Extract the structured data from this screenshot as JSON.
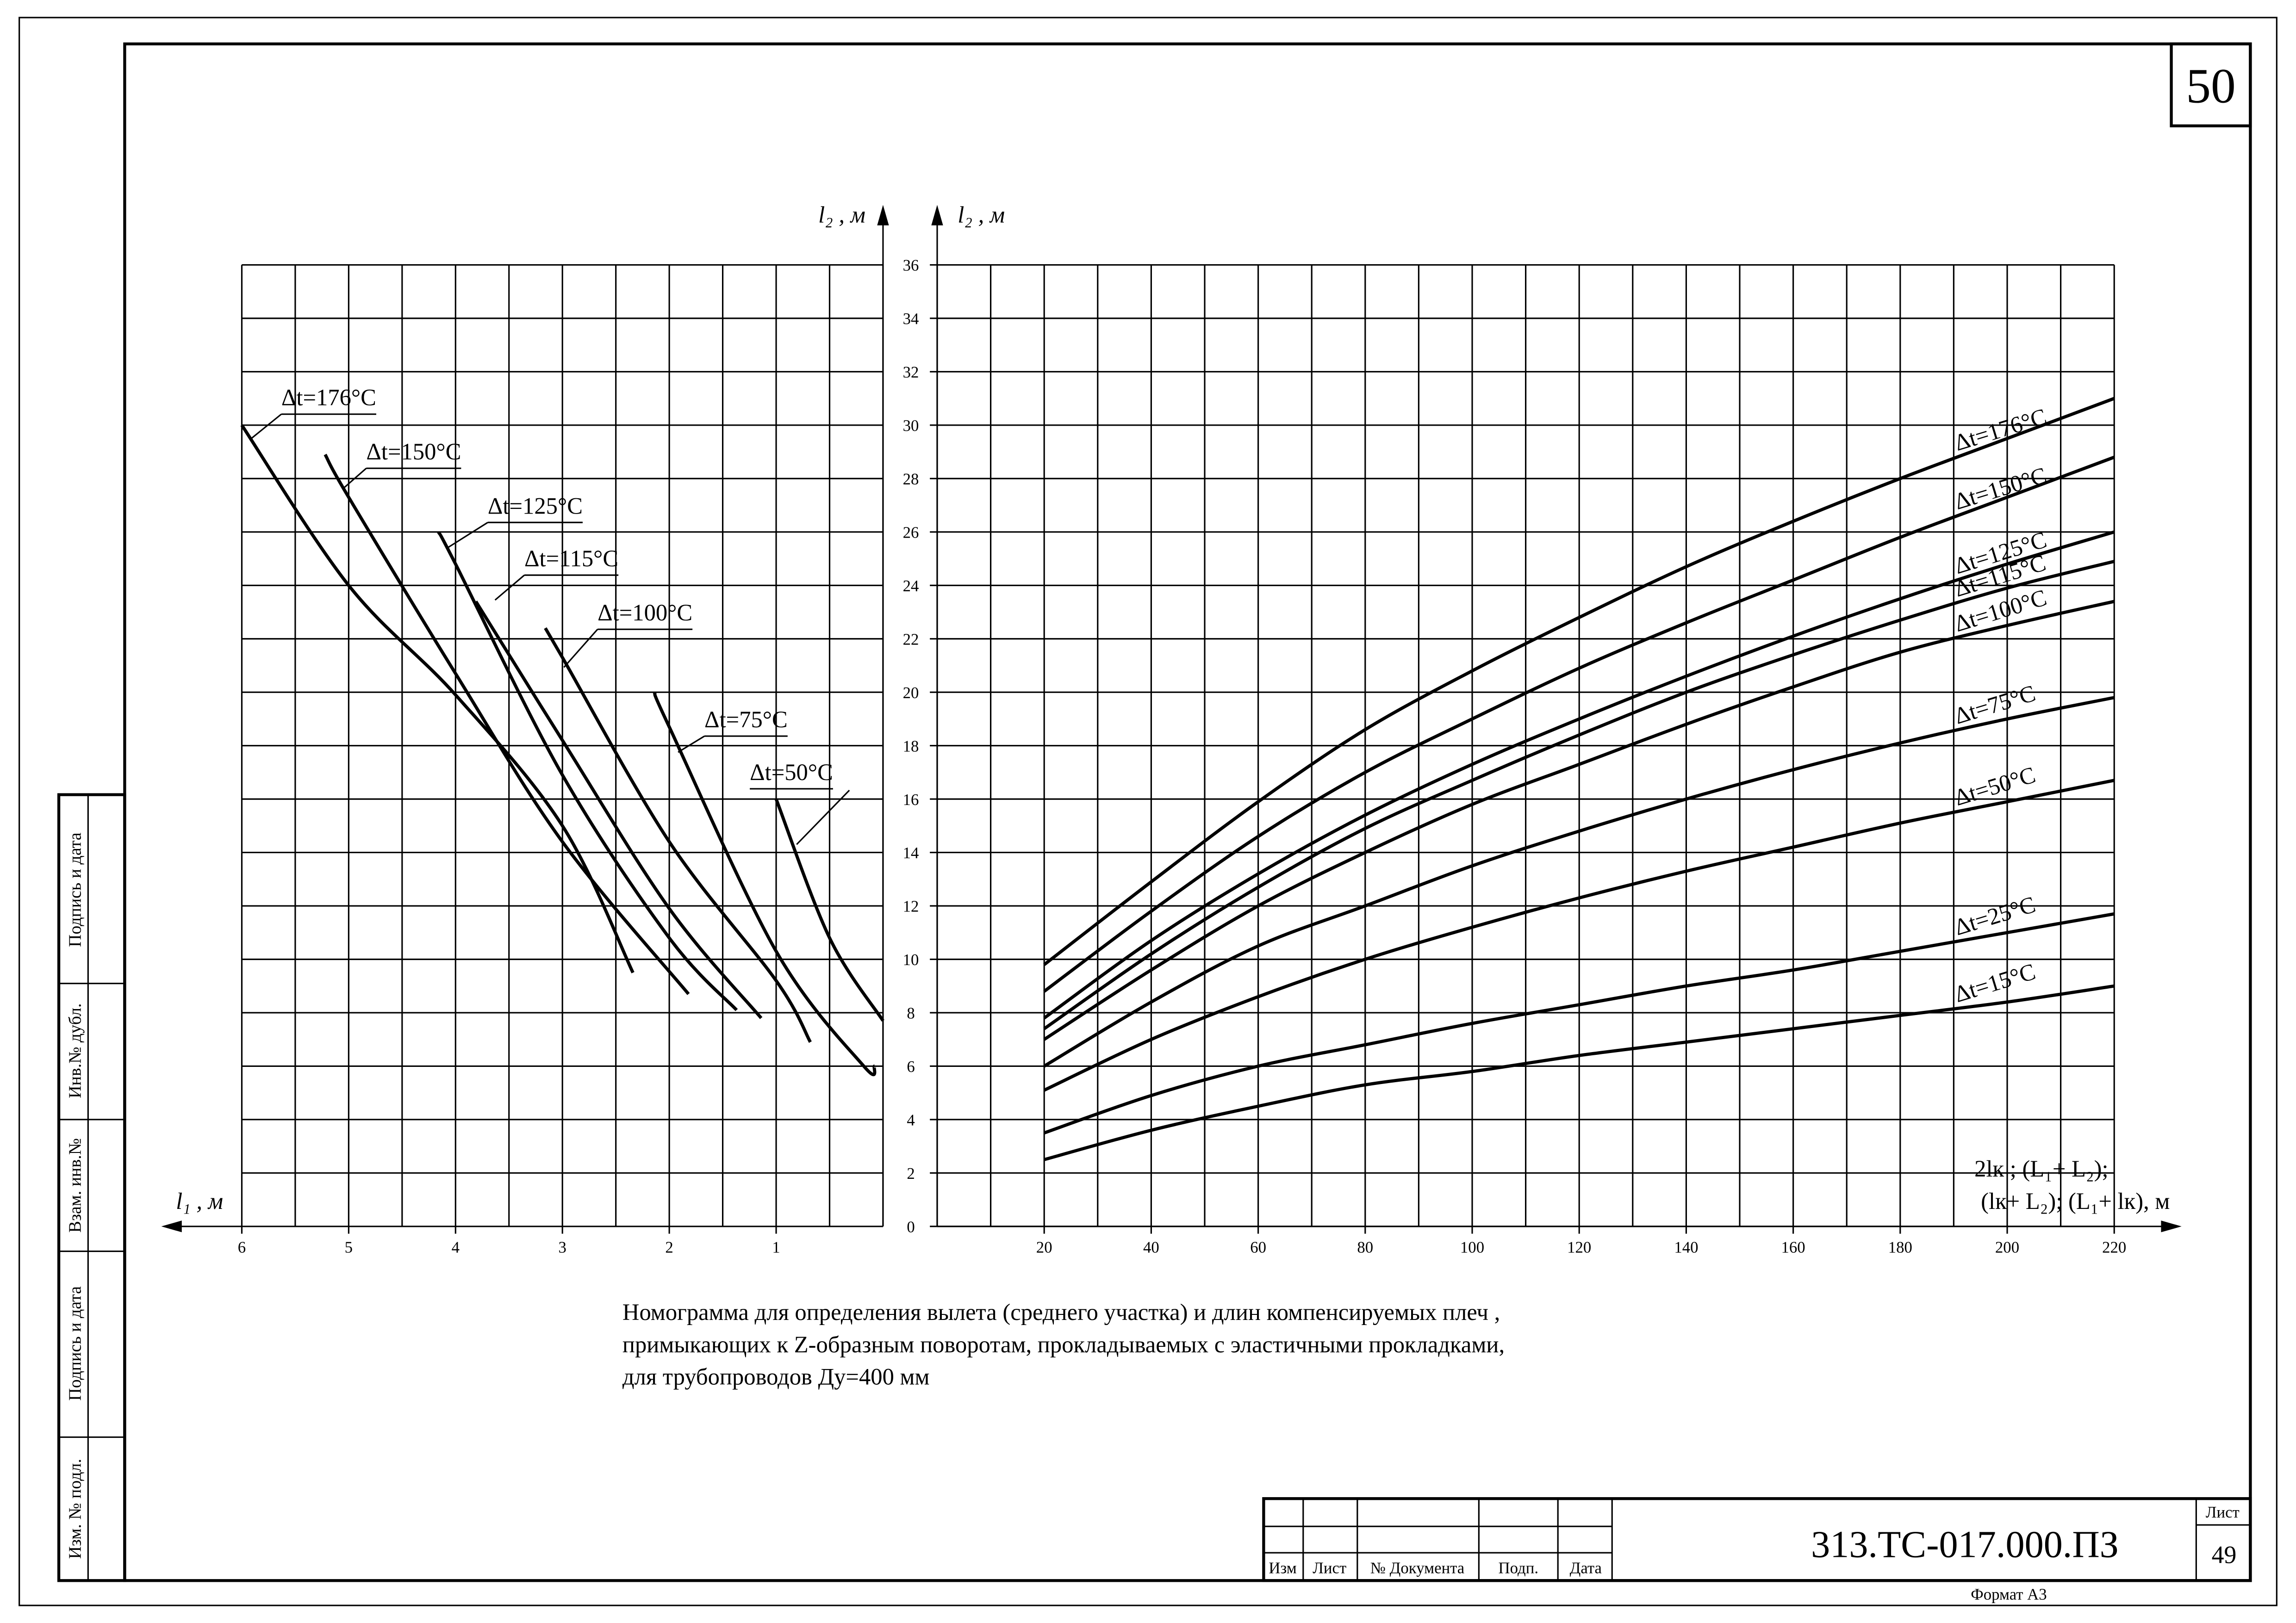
{
  "page_number": "50",
  "chart_data": [
    {
      "type": "line",
      "axis_label_x": "l₁ , м",
      "axis_label_y": "l₂ , м",
      "color": "#000000",
      "xlim": [
        6,
        0
      ],
      "xticks": [
        6,
        5,
        4,
        3,
        2,
        1
      ],
      "xgrid": [
        6,
        5.5,
        5,
        4.5,
        4,
        3.5,
        3,
        2.5,
        2,
        1.5,
        1,
        0.5,
        0
      ],
      "ylim": [
        0,
        36
      ],
      "ygrid": [
        2,
        4,
        6,
        8,
        10,
        12,
        14,
        16,
        18,
        20,
        22,
        24,
        26,
        28,
        30,
        32,
        34,
        36
      ],
      "series": [
        {
          "name": "Δt=176°C",
          "x": [
            6,
            5,
            4,
            3,
            2.34
          ],
          "values": [
            30,
            24,
            19.9,
            15,
            9.5
          ]
        },
        {
          "name": "Δt=150°C",
          "x": [
            5.22,
            5,
            4,
            3,
            1.82
          ],
          "values": [
            28.9,
            27.3,
            20.7,
            14.4,
            8.7
          ]
        },
        {
          "name": "Δt=125°C",
          "x": [
            4.16,
            4,
            3,
            2,
            1.37
          ],
          "values": [
            26,
            24.8,
            16.9,
            10.8,
            8.1
          ]
        },
        {
          "name": "Δt=115°C",
          "x": [
            3.81,
            3,
            2,
            1.14
          ],
          "values": [
            23.4,
            18.2,
            11.9,
            7.8
          ]
        },
        {
          "name": "Δt=100°C",
          "x": [
            3.16,
            3,
            2,
            1,
            0.68
          ],
          "values": [
            22.4,
            21.3,
            14.4,
            9.2,
            6.9
          ]
        },
        {
          "name": "Δt=75°C",
          "x": [
            2.14,
            2,
            1,
            0.18,
            0.08
          ],
          "values": [
            20,
            18.7,
            10.3,
            6,
            6
          ]
        },
        {
          "name": "Δt=50°C",
          "x": [
            1,
            0.5,
            0
          ],
          "values": [
            16,
            10.8,
            7.7
          ]
        }
      ]
    },
    {
      "type": "line",
      "axis_label_y": "l₂ , м",
      "axis_label_x": [
        "2lк ; (L₁+ L₂);",
        "(lк+ L₂); (L₁+ lк), м"
      ],
      "color": "#000000",
      "x": [
        20,
        40,
        60,
        80,
        100,
        120,
        140,
        160,
        180,
        200,
        220
      ],
      "xlim": [
        0,
        220
      ],
      "xticks": [
        20,
        40,
        60,
        80,
        100,
        120,
        140,
        160,
        180,
        200,
        220
      ],
      "xgrid": [
        0,
        10,
        20,
        30,
        40,
        50,
        60,
        70,
        80,
        90,
        100,
        110,
        120,
        130,
        140,
        150,
        160,
        170,
        180,
        190,
        200,
        210,
        220
      ],
      "ylim": [
        0,
        36
      ],
      "yticks": [
        0,
        2,
        4,
        6,
        8,
        10,
        12,
        14,
        16,
        18,
        20,
        22,
        24,
        26,
        28,
        30,
        32,
        34,
        36
      ],
      "series": [
        {
          "name": "Δt=176°C",
          "values": [
            9.8,
            12.9,
            15.9,
            18.6,
            20.8,
            22.8,
            24.7,
            26.4,
            28.0,
            29.5,
            31.0
          ]
        },
        {
          "name": "Δt=150°C",
          "values": [
            8.8,
            11.8,
            14.6,
            17.0,
            19.0,
            20.9,
            22.6,
            24.2,
            25.8,
            27.3,
            28.8
          ]
        },
        {
          "name": "Δt=125°C",
          "values": [
            7.8,
            10.7,
            13.2,
            15.4,
            17.3,
            19.0,
            20.6,
            22.1,
            23.5,
            24.8,
            26.0
          ]
        },
        {
          "name": "Δt=115°C",
          "values": [
            7.4,
            10.2,
            12.7,
            14.9,
            16.7,
            18.4,
            20.0,
            21.4,
            22.7,
            23.9,
            24.9
          ]
        },
        {
          "name": "Δt=100°C",
          "values": [
            7.0,
            9.6,
            12.0,
            14.0,
            15.8,
            17.3,
            18.8,
            20.2,
            21.5,
            22.5,
            23.4
          ]
        },
        {
          "name": "Δt=75°C",
          "values": [
            6.0,
            8.4,
            10.5,
            12.0,
            13.5,
            14.8,
            16.0,
            17.1,
            18.1,
            19.0,
            19.8
          ]
        },
        {
          "name": "Δt=50°C",
          "values": [
            5.1,
            7.0,
            8.6,
            10.0,
            11.2,
            12.3,
            13.3,
            14.2,
            15.1,
            15.9,
            16.7
          ]
        },
        {
          "name": "Δt=25°C",
          "values": [
            3.5,
            4.9,
            6.0,
            6.8,
            7.6,
            8.3,
            9.0,
            9.6,
            10.3,
            11.0,
            11.7
          ]
        },
        {
          "name": "Δt=15°C",
          "values": [
            2.5,
            3.6,
            4.5,
            5.3,
            5.8,
            6.4,
            6.9,
            7.4,
            7.9,
            8.4,
            9.0
          ]
        }
      ]
    }
  ],
  "caption": [
    "Номограмма для определения вылета (среднего участка) и длин компенсируемых плеч ,",
    "примыкающих к Z-образным поворотам, прокладываемых с эластичными прокладками,",
    "для трубопроводов Ду=400 мм"
  ],
  "title_block": {
    "columns": [
      "Изм",
      "Лист",
      "№ Документа",
      "Подп.",
      "Дата"
    ],
    "code": "313.ТС-017.000.ПЗ",
    "sheet_label": "Лист",
    "sheet": "49",
    "format": "Формат А3"
  },
  "side_stamp": [
    "Подпись и дата",
    "Инв.№ дубл.",
    "Взам. инв.№",
    "Подпись и дата",
    "Изм. № подл."
  ]
}
